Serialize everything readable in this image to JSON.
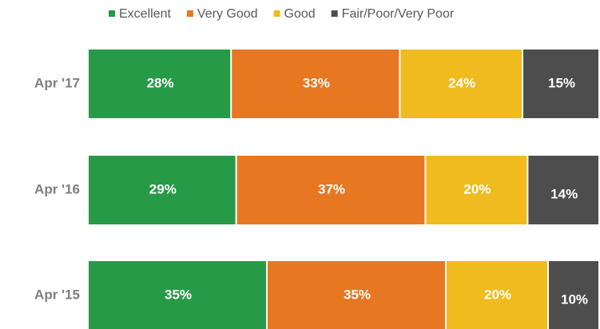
{
  "chart_data": {
    "type": "stacked-bar-horizontal",
    "categories": [
      "Apr '17",
      "Apr '16",
      "Apr '15"
    ],
    "xlim": [
      0,
      100
    ],
    "legend": "top",
    "series": [
      {
        "name": "Excellent",
        "color": "#279a47",
        "values": [
          28,
          29,
          35
        ],
        "value_labels": [
          "28%",
          "29%",
          "35%"
        ]
      },
      {
        "name": "Very Good",
        "color": "#e87722",
        "values": [
          33,
          37,
          35
        ],
        "value_labels": [
          "33%",
          "37%",
          "35%"
        ]
      },
      {
        "name": "Good",
        "color": "#f0bb1e",
        "values": [
          24,
          20,
          20
        ],
        "value_labels": [
          "24%",
          "20%",
          "20%"
        ]
      },
      {
        "name": "Fair/Poor/Very Poor",
        "color": "#4d4d4d",
        "values": [
          15,
          14,
          10
        ],
        "value_labels": [
          "15%",
          "14%",
          "10%"
        ]
      }
    ]
  }
}
